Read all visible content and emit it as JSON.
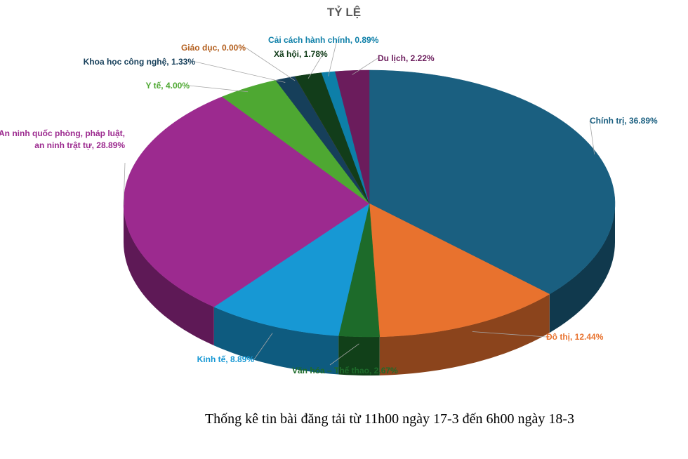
{
  "chart_data": {
    "type": "pie3d",
    "title": "TỶ LỆ",
    "values": [
      36.89,
      12.44,
      2.67,
      8.89,
      28.89,
      4.0,
      1.33,
      0.0,
      1.78,
      0.89,
      2.22
    ],
    "value_labels": [
      "Chính trị, 36.89%",
      "Đô thị, 12.44%",
      "Văn hóa – Thể thao, 2.67%",
      "Kinh tế, 8.89%",
      "An ninh quốc phòng, pháp luật, an ninh trật tự, 28.89%",
      "Y tế, 4.00%",
      "Khoa học công nghệ, 1.33%",
      "Giáo dục, 0.00%",
      "Xã hội, 1.78%",
      "Cải cách hành chính, 0.89%",
      "Du lịch, 2.22%"
    ],
    "colors": [
      "#1a5f80",
      "#e8722e",
      "#1d6b2a",
      "#1798d4",
      "#9c2a8f",
      "#4ea832",
      "#163f5a",
      "#b35f1e",
      "#123d1a",
      "#0d7fa8",
      "#6b1c5c"
    ],
    "caption": "Thống kê tin bài đăng tải từ 11h00 ngày 17-3 đến 6h00 ngày 18-3"
  }
}
